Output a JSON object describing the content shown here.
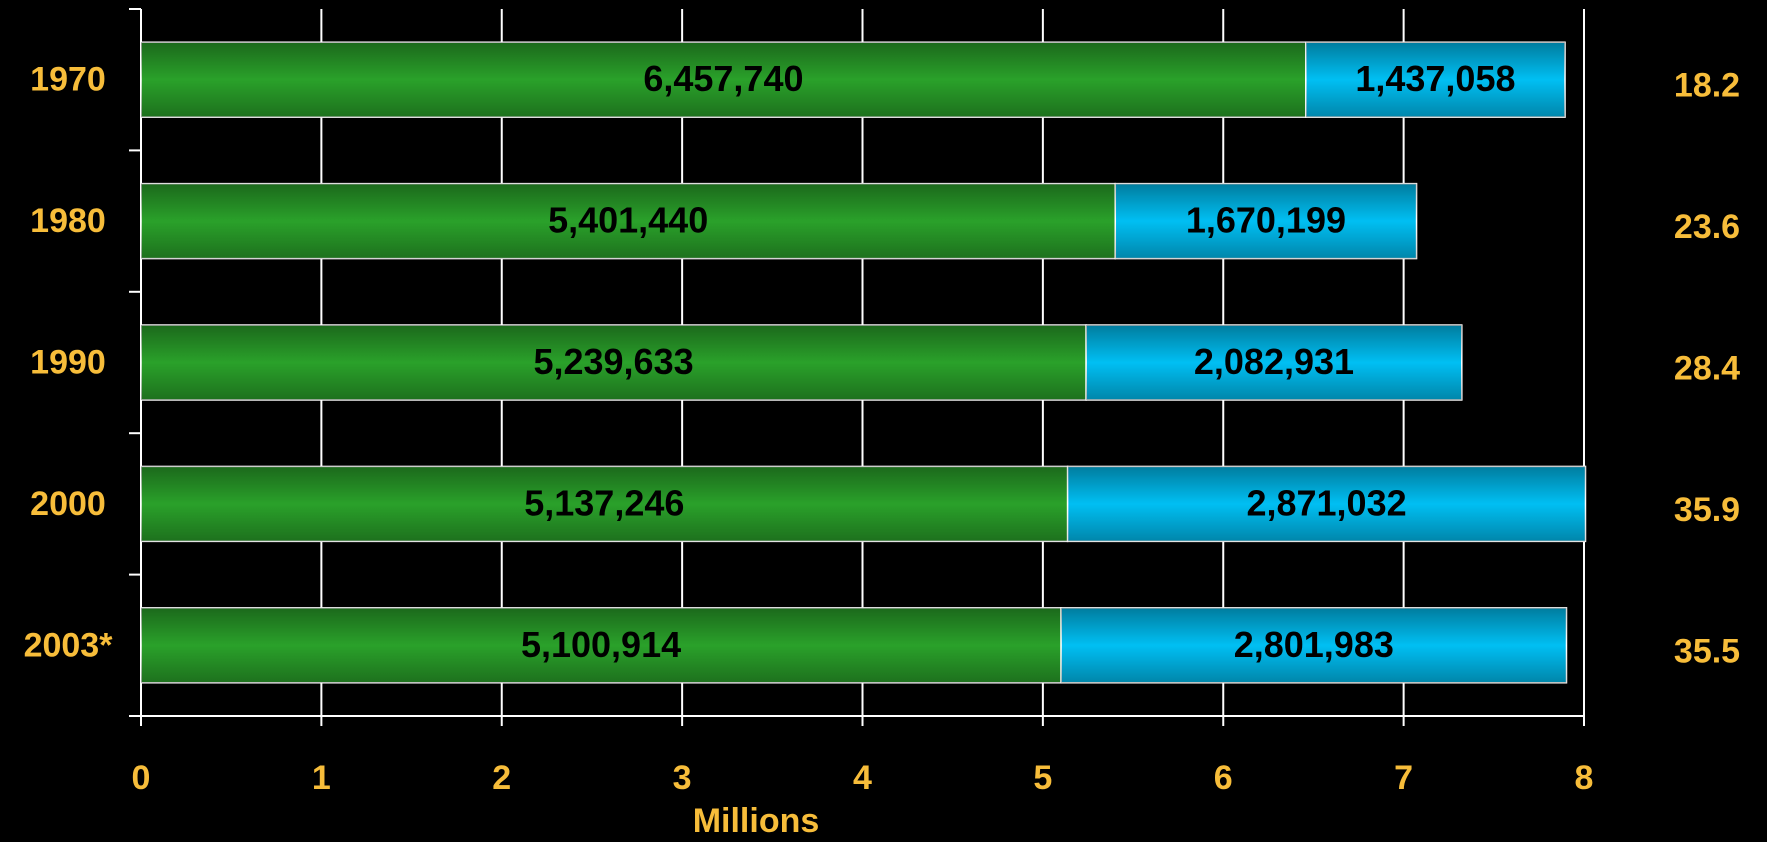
{
  "chart_data": {
    "type": "stacked-barh",
    "categories": [
      "1970",
      "1980",
      "1990",
      "2000",
      "2003*"
    ],
    "series": [
      {
        "color": "#2aa12a",
        "values": [
          6.45774,
          5.40144,
          5.239633,
          5.137246,
          5.100914
        ],
        "value_labels": [
          "6,457,740",
          "5,401,440",
          "5,239,633",
          "5,137,246",
          "5,100,914"
        ]
      },
      {
        "color": "#00bff3",
        "values": [
          1.437058,
          1.670199,
          2.082931,
          2.871032,
          2.801983
        ],
        "value_labels": [
          "1,437,058",
          "1,670,199",
          "2,082,931",
          "2,871,032",
          "2,801,983"
        ]
      }
    ],
    "annotations": [
      18.2,
      23.6,
      28.4,
      35.9,
      35.5
    ],
    "xlabel": "Millions",
    "xlim": [
      0,
      8
    ],
    "xticks": [
      0,
      1,
      2,
      3,
      4,
      5,
      6,
      7,
      8
    ],
    "grid": true
  }
}
